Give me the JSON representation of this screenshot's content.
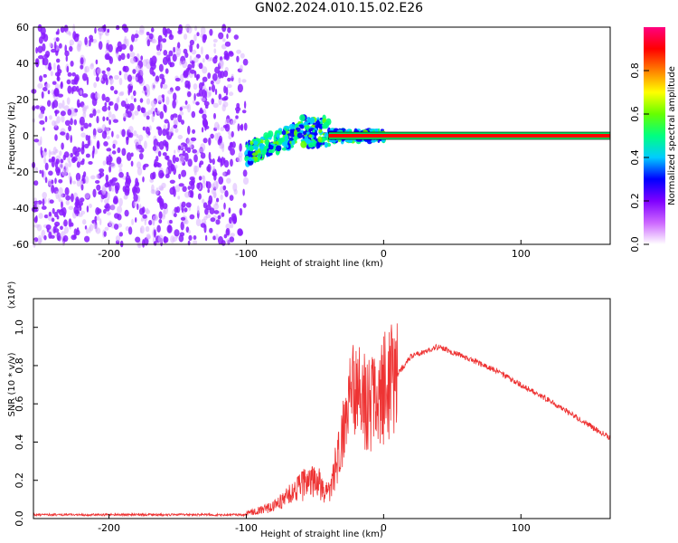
{
  "title": "GN02.2024.010.15.02.E26",
  "chart_data": [
    {
      "type": "heatmap",
      "xlabel": "Height of straight line (km)",
      "ylabel": "Frequency (Hz)",
      "xlim": [
        -255,
        165
      ],
      "ylim": [
        -60,
        60
      ],
      "xticks": [
        "-200",
        "-100",
        "0",
        "100"
      ],
      "yticks": [
        "-60",
        "-40",
        "-20",
        "0",
        "20",
        "40",
        "60"
      ],
      "colorbar": {
        "label": "Normalized spectral amplitude",
        "range": [
          0.0,
          1.0
        ],
        "ticks": [
          "0.0",
          "0.2",
          "0.4",
          "0.6",
          "0.8"
        ],
        "colors": [
          "#ffffff",
          "#cc66ff",
          "#7f00ff",
          "#0000ff",
          "#00ccff",
          "#00ff80",
          "#66ff00",
          "#ffff00",
          "#ff8000",
          "#ff0000",
          "#ff0080"
        ]
      },
      "regions": [
        {
          "x_from": -255,
          "x_to": -100,
          "f_from": -60,
          "f_to": 60,
          "amplitude": 0.15
        },
        {
          "x_from": -100,
          "x_to": 0,
          "f_from": -12,
          "f_to": 12,
          "amplitude": 0.45
        },
        {
          "x_from": 0,
          "x_to": 165,
          "f_from": -1,
          "f_to": 1,
          "amplitude": 0.9
        }
      ],
      "grid": false
    },
    {
      "type": "line",
      "xlabel": "Height of straight line (km)",
      "ylabel": "SNR (10 * v/v)",
      "ylabel_exponent": "(x10⁴)",
      "xlim": [
        -255,
        165
      ],
      "ylim": [
        0.0,
        1.15
      ],
      "xticks": [
        "-200",
        "-100",
        "0",
        "100"
      ],
      "yticks": [
        "0.0",
        "0.2",
        "0.4",
        "0.6",
        "0.8",
        "1.0"
      ],
      "color": "#ee3333",
      "grid": false,
      "envelope": {
        "x": [
          -255,
          -200,
          -150,
          -100,
          -80,
          -60,
          -50,
          -40,
          -30,
          -20,
          -15,
          -10,
          0,
          20,
          40,
          80,
          120,
          165
        ],
        "y": [
          0.02,
          0.02,
          0.02,
          0.02,
          0.05,
          0.14,
          0.15,
          0.13,
          0.4,
          0.7,
          0.6,
          0.55,
          0.65,
          0.85,
          0.9,
          0.78,
          0.62,
          0.42
        ]
      }
    }
  ]
}
